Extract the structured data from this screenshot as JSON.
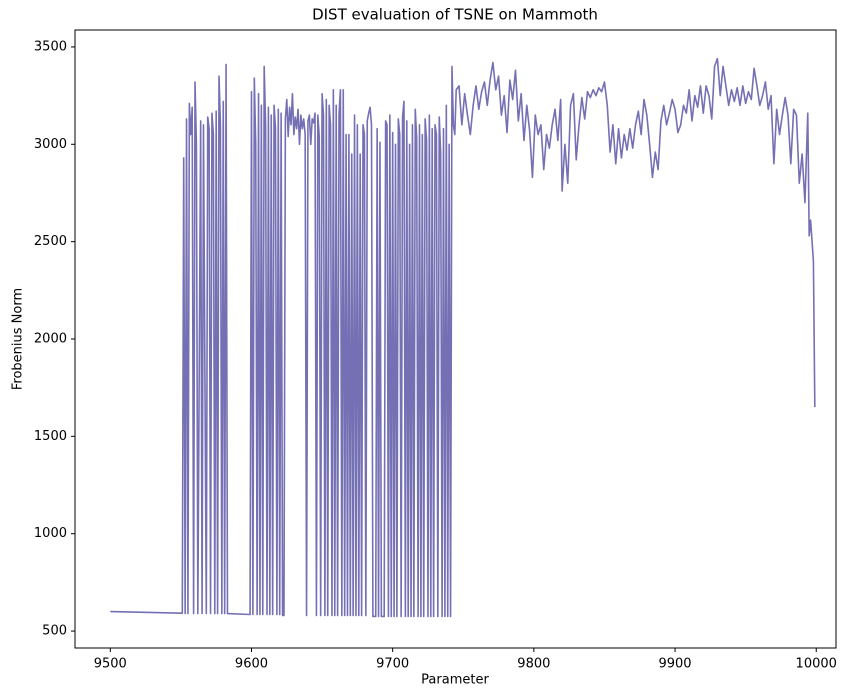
{
  "chart_data": {
    "type": "line",
    "title": "DIST evaluation of TSNE on Mammoth",
    "x_label": "Parameter",
    "y_label": "Frobenius Norm",
    "xlim": [
      9475,
      10014
    ],
    "ylim": [
      413,
      3587
    ],
    "xticks": [
      9500,
      9600,
      9700,
      9800,
      9900,
      10000
    ],
    "yticks": [
      500,
      1000,
      1500,
      2000,
      2500,
      3000,
      3500
    ],
    "grid": false,
    "x": [
      9500,
      9551,
      9552,
      9553,
      9554,
      9555,
      9556,
      9557,
      9558,
      9559,
      9560,
      9561,
      9562,
      9564,
      9565,
      9566,
      9568,
      9569,
      9570,
      9571,
      9572,
      9573,
      9574,
      9575,
      9576,
      9577,
      9578,
      9579,
      9580,
      9581,
      9582,
      9583,
      9599,
      9600,
      9601,
      9602,
      9603,
      9604,
      9605,
      9606,
      9607,
      9608,
      9609,
      9610,
      9611,
      9612,
      9613,
      9614,
      9615,
      9616,
      9617,
      9618,
      9619,
      9620,
      9621,
      9622,
      9623,
      9624,
      9625,
      9626,
      9627,
      9628,
      9629,
      9630,
      9631,
      9632,
      9633,
      9634,
      9635,
      9636,
      9637,
      9638,
      9639,
      9640,
      9641,
      9642,
      9643,
      9644,
      9645,
      9646,
      9647,
      9648,
      9649,
      9650,
      9651,
      9652,
      9653,
      9654,
      9655,
      9656,
      9657,
      9658,
      9659,
      9660,
      9661,
      9662,
      9663,
      9664,
      9665,
      9666,
      9667,
      9668,
      9669,
      9670,
      9671,
      9672,
      9673,
      9674,
      9675,
      9676,
      9677,
      9678,
      9679,
      9680,
      9681,
      9682,
      9683,
      9684,
      9685,
      9686,
      9688,
      9689,
      9690,
      9691,
      9692,
      9694,
      9695,
      9696,
      9697,
      9698,
      9699,
      9700,
      9701,
      9702,
      9703,
      9704,
      9705,
      9706,
      9707,
      9708,
      9709,
      9710,
      9711,
      9712,
      9713,
      9714,
      9715,
      9716,
      9717,
      9718,
      9719,
      9720,
      9721,
      9722,
      9723,
      9724,
      9725,
      9726,
      9727,
      9728,
      9729,
      9730,
      9731,
      9732,
      9733,
      9734,
      9735,
      9736,
      9737,
      9738,
      9739,
      9740,
      9741,
      9742,
      9743,
      9744,
      9745,
      9747,
      9749,
      9751,
      9753,
      9755,
      9757,
      9759,
      9761,
      9763,
      9765,
      9767,
      9769,
      9771,
      9773,
      9775,
      9777,
      9779,
      9781,
      9783,
      9785,
      9787,
      9789,
      9791,
      9793,
      9795,
      9797,
      9799,
      9801,
      9803,
      9805,
      9807,
      9809,
      9811,
      9813,
      9815,
      9817,
      9819,
      9820,
      9822,
      9824,
      9826,
      9828,
      9830,
      9832,
      9834,
      9836,
      9838,
      9840,
      9842,
      9844,
      9846,
      9848,
      9850,
      9852,
      9854,
      9856,
      9858,
      9860,
      9862,
      9864,
      9866,
      9868,
      9870,
      9872,
      9874,
      9876,
      9878,
      9880,
      9882,
      9884,
      9886,
      9888,
      9890,
      9892,
      9894,
      9896,
      9898,
      9900,
      9902,
      9904,
      9906,
      9908,
      9910,
      9912,
      9914,
      9916,
      9918,
      9920,
      9922,
      9924,
      9926,
      9928,
      9930,
      9932,
      9934,
      9936,
      9938,
      9940,
      9942,
      9944,
      9946,
      9948,
      9950,
      9952,
      9954,
      9956,
      9958,
      9960,
      9962,
      9964,
      9966,
      9968,
      9970,
      9972,
      9974,
      9976,
      9978,
      9980,
      9982,
      9984,
      9986,
      9988,
      9990,
      9992,
      9994,
      9995,
      9996,
      9998,
      9999
    ],
    "series": [
      {
        "color": "#7570b3",
        "values": [
          600,
          592,
          2930,
          590,
          3130,
          590,
          3210,
          3050,
          3190,
          590,
          3320,
          3000,
          590,
          3120,
          590,
          3100,
          590,
          3140,
          3080,
          590,
          3160,
          3050,
          590,
          3170,
          590,
          3350,
          3100,
          590,
          3220,
          590,
          3410,
          590,
          585,
          3270,
          585,
          3340,
          3000,
          585,
          3260,
          585,
          3200,
          585,
          3400,
          3100,
          585,
          3190,
          585,
          3150,
          585,
          3200,
          3080,
          585,
          3180,
          585,
          3160,
          580,
          580,
          3130,
          3230,
          3040,
          3190,
          3100,
          3260,
          3050,
          3140,
          3080,
          3180,
          3000,
          3150,
          3080,
          3130,
          3050,
          580,
          3120,
          3150,
          3000,
          3130,
          3110,
          3160,
          580,
          3150,
          3040,
          580,
          3260,
          3150,
          580,
          3230,
          580,
          3200,
          3100,
          580,
          3280,
          580,
          3200,
          580,
          3150,
          3280,
          580,
          3280,
          580,
          3050,
          580,
          3050,
          580,
          2950,
          580,
          3150,
          580,
          3100,
          580,
          2950,
          580,
          3100,
          3050,
          580,
          3120,
          3160,
          3190,
          3100,
          575,
          575,
          3080,
          575,
          3010,
          575,
          575,
          3120,
          3100,
          575,
          3150,
          575,
          3060,
          575,
          3000,
          575,
          3130,
          3050,
          575,
          3140,
          3220,
          575,
          3120,
          575,
          3000,
          575,
          3100,
          575,
          3180,
          3030,
          575,
          3100,
          575,
          3050,
          575,
          3130,
          3020,
          575,
          3150,
          575,
          3080,
          575,
          3100,
          3050,
          575,
          3140,
          2950,
          575,
          3080,
          575,
          3200,
          575,
          3000,
          575,
          3400,
          3100,
          3050,
          3280,
          3300,
          3100,
          3260,
          3150,
          3050,
          3200,
          3300,
          3180,
          3270,
          3320,
          3200,
          3330,
          3420,
          3280,
          3350,
          3150,
          3250,
          3060,
          3330,
          3230,
          3380,
          3120,
          3260,
          3020,
          3200,
          3070,
          2830,
          3150,
          3050,
          3100,
          2870,
          3050,
          2980,
          3100,
          3180,
          3020,
          3230,
          2760,
          3000,
          2800,
          3200,
          3260,
          2920,
          3100,
          3240,
          3130,
          3270,
          3240,
          3280,
          3250,
          3290,
          3270,
          3320,
          3200,
          2960,
          3100,
          2900,
          3080,
          2930,
          3050,
          2970,
          3080,
          2980,
          3100,
          3170,
          3050,
          3230,
          3150,
          3000,
          2830,
          2960,
          2870,
          3120,
          3200,
          3100,
          3160,
          3230,
          3180,
          3060,
          3100,
          3200,
          3160,
          3280,
          3120,
          3250,
          3190,
          3300,
          3160,
          3300,
          3250,
          3130,
          3400,
          3440,
          3250,
          3400,
          3300,
          3200,
          3280,
          3220,
          3290,
          3200,
          3300,
          3210,
          3270,
          3230,
          3390,
          3300,
          3200,
          3250,
          3320,
          3180,
          3250,
          2900,
          3180,
          3050,
          3150,
          3240,
          3150,
          2900,
          3180,
          3150,
          2800,
          2950,
          2700,
          3160,
          2530,
          2610,
          2400,
          1650
        ]
      }
    ]
  }
}
